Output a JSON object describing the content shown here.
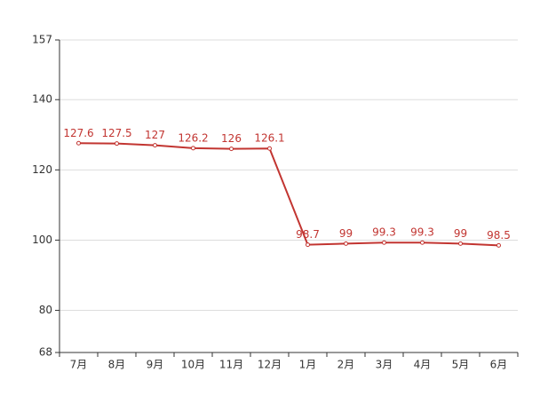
{
  "chart_data": {
    "type": "line",
    "categories": [
      "7月",
      "8月",
      "9月",
      "10月",
      "11月",
      "12月",
      "1月",
      "2月",
      "3月",
      "4月",
      "5月",
      "6月"
    ],
    "series": [
      {
        "color": "#c23531",
        "values": [
          127.6,
          127.5,
          127,
          126.2,
          126,
          126.1,
          98.7,
          99,
          99.3,
          99.3,
          99,
          98.5
        ]
      }
    ],
    "ylim": [
      68,
      157
    ],
    "yticks": [
      68,
      80,
      100,
      120,
      140,
      157
    ],
    "grid": true
  }
}
